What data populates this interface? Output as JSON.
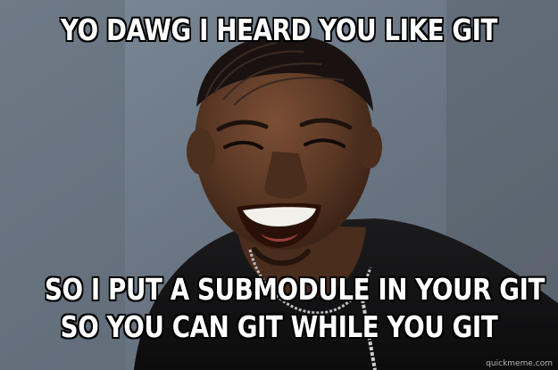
{
  "meme": {
    "top_caption": "YO DAWG I HEARD YOU LIKE GIT",
    "bottom_caption_lines": [
      "SO I PUT A SUBMODULE IN YOUR GIT",
      "SO YOU CAN GIT WHILE YOU GIT"
    ],
    "watermark": "quickmeme.com"
  },
  "colors": {
    "caption_fill": "#ffffff",
    "caption_outline": "#000000",
    "background_wall": "#6f7e8e",
    "shirt": "#111111",
    "skin": "#5a3826"
  }
}
